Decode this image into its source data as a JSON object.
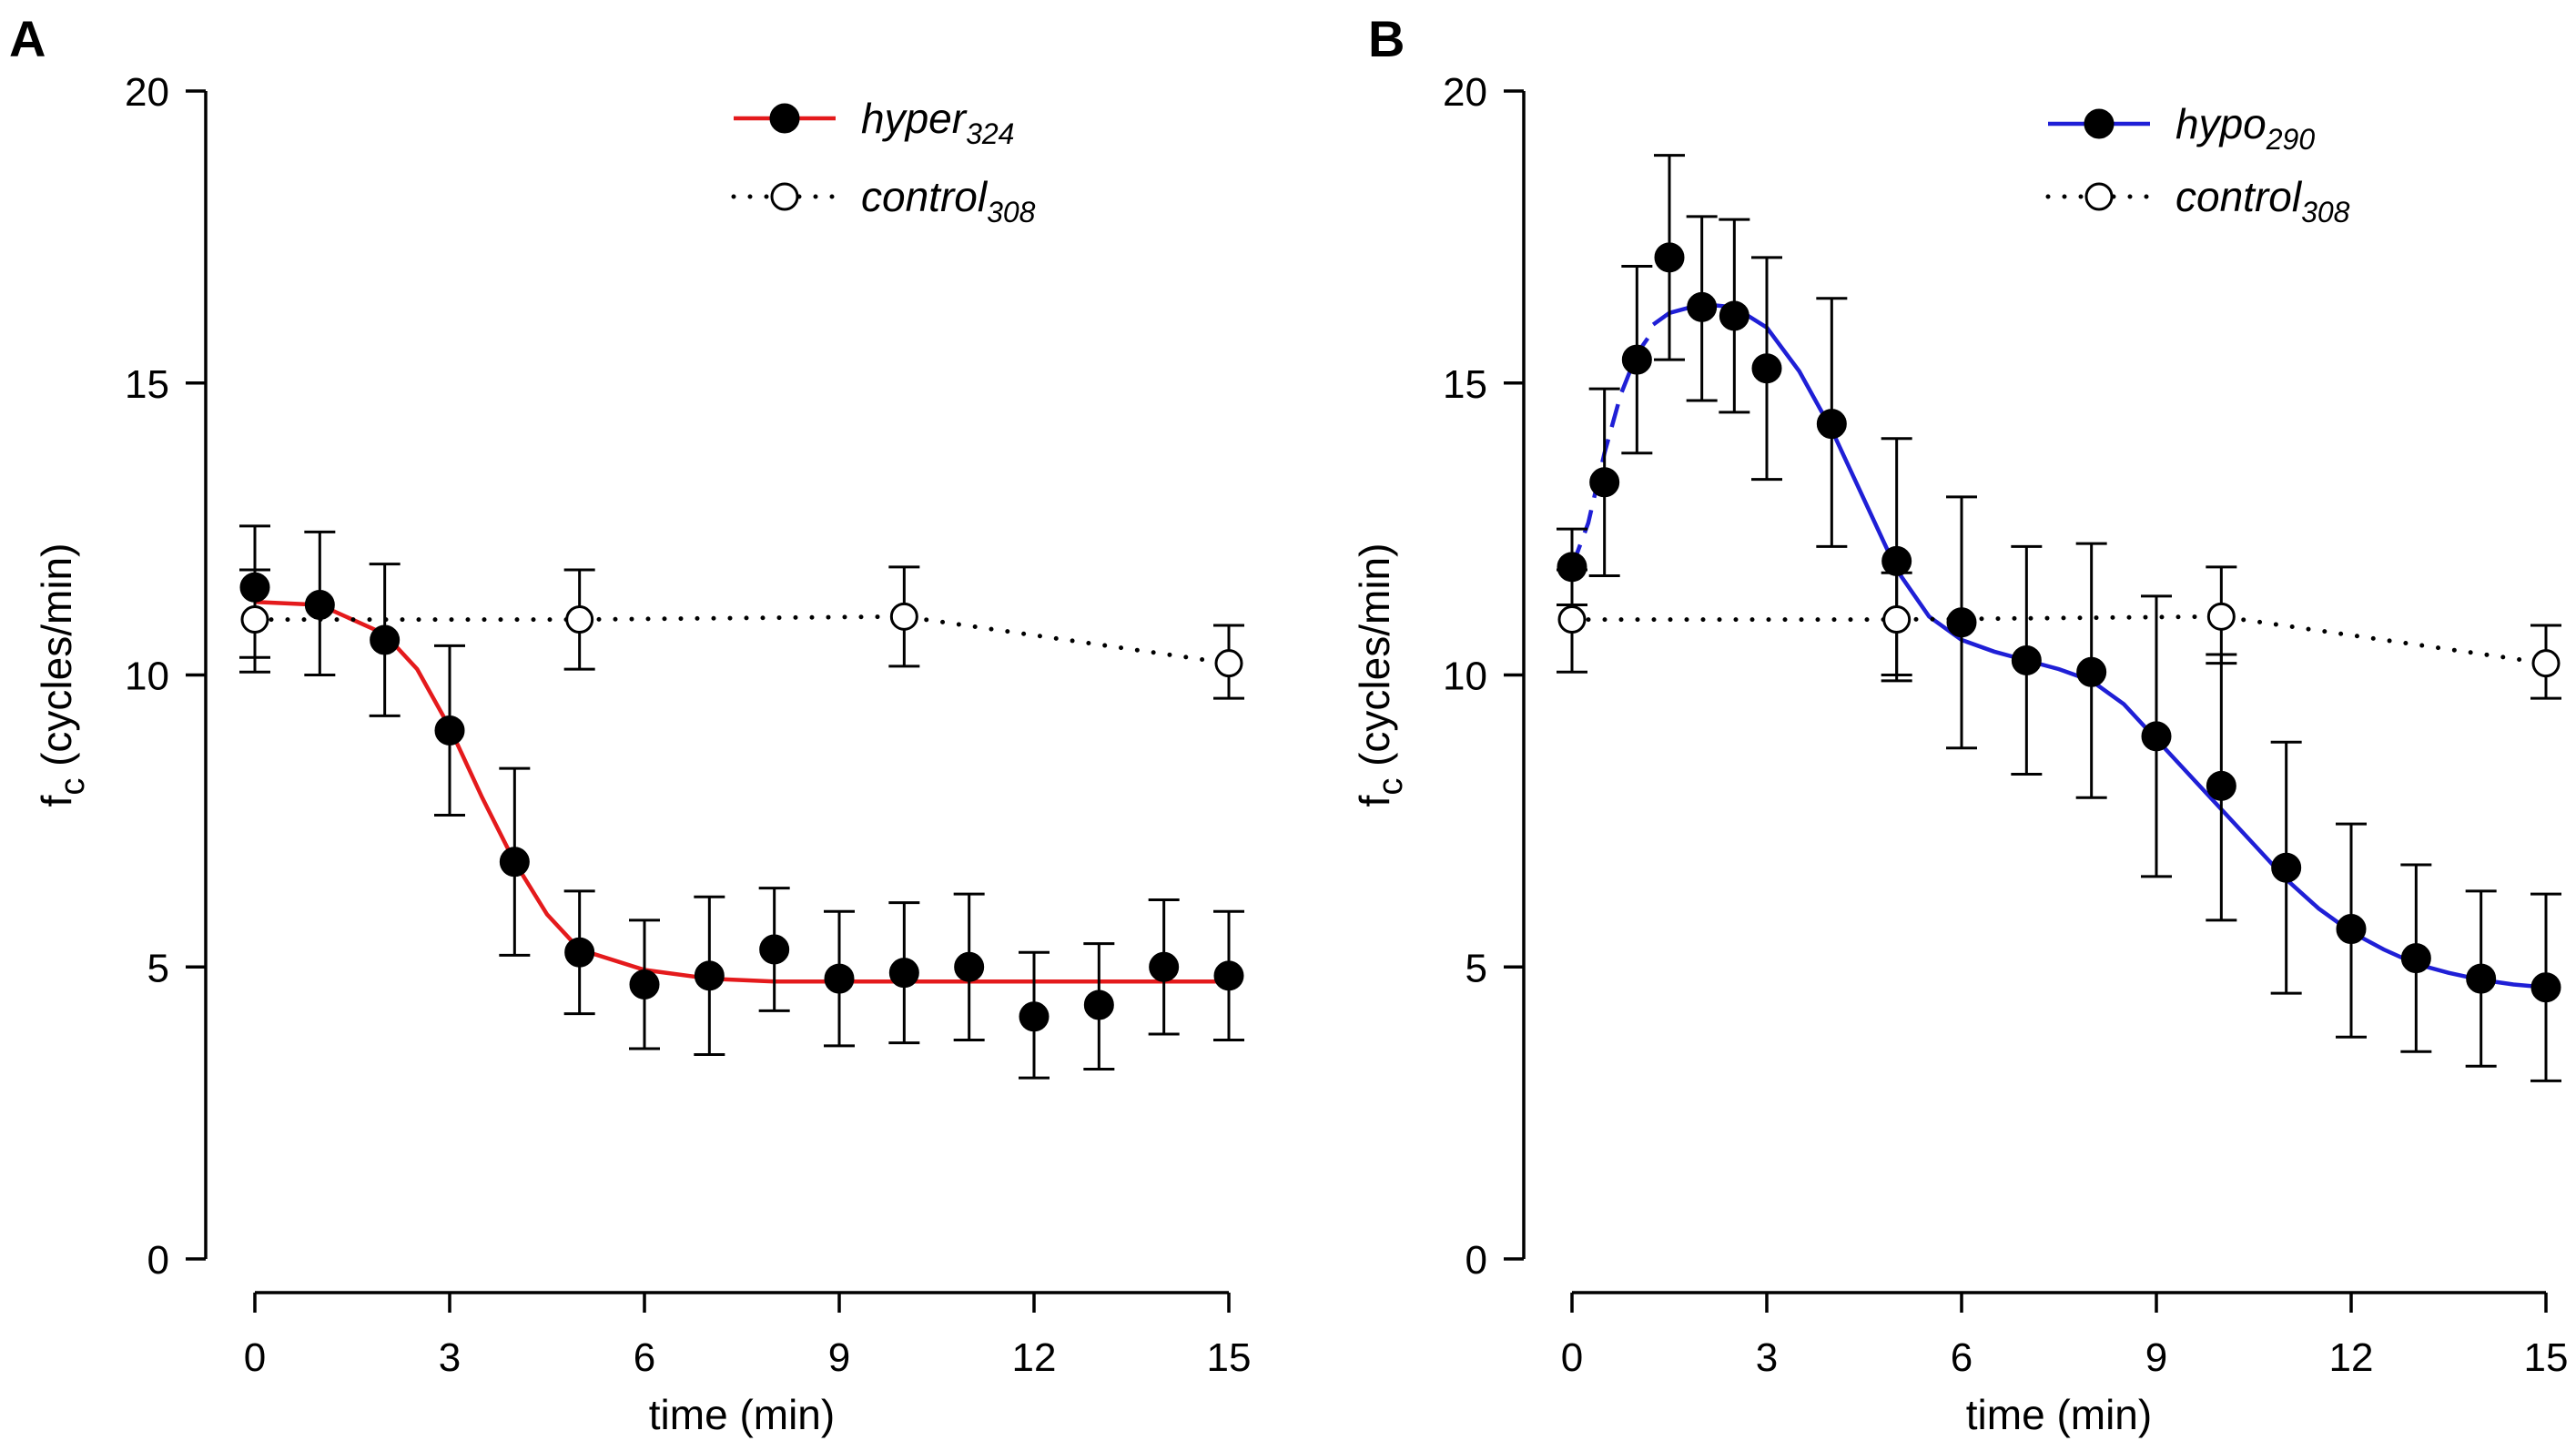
{
  "chart_data": [
    {
      "panel": "A",
      "type": "line",
      "xlabel": "time (min)",
      "ylabel_main": "f",
      "ylabel_sub": "c",
      "ylabel_units": " (cycles/min)",
      "xlim": [
        0,
        15
      ],
      "ylim": [
        0,
        20
      ],
      "xticks": [
        "0",
        "3",
        "6",
        "9",
        "12",
        "15"
      ],
      "yticks": [
        "0",
        "5",
        "10",
        "15",
        "20"
      ],
      "legend": [
        {
          "name": "hyper",
          "sub": "324",
          "style": "solid",
          "color": "#e41a1c",
          "marker": "filled"
        },
        {
          "name": "control",
          "sub": "308",
          "style": "dotted",
          "color": "#000000",
          "marker": "open"
        }
      ],
      "series": [
        {
          "name": "hyper_324",
          "marker": "filled",
          "x": [
            0,
            1,
            2,
            3,
            4,
            5,
            6,
            7,
            8,
            9,
            10,
            11,
            12,
            13,
            14,
            15
          ],
          "y": [
            11.5,
            11.2,
            10.6,
            9.05,
            6.8,
            5.25,
            4.7,
            4.85,
            5.3,
            4.8,
            4.9,
            5.0,
            4.15,
            4.35,
            5.0,
            4.85
          ],
          "err_low": [
            10.3,
            10.0,
            9.3,
            7.6,
            5.2,
            4.2,
            3.6,
            3.5,
            4.25,
            3.65,
            3.7,
            3.75,
            3.1,
            3.25,
            3.85,
            3.75
          ],
          "err_high": [
            12.55,
            12.45,
            11.9,
            10.5,
            8.4,
            6.3,
            5.8,
            6.2,
            6.35,
            5.95,
            6.1,
            6.25,
            5.25,
            5.4,
            6.15,
            5.95
          ]
        },
        {
          "name": "control_308",
          "marker": "open",
          "x": [
            0,
            5,
            10,
            15
          ],
          "y": [
            10.95,
            10.95,
            11.0,
            10.2
          ],
          "err_low": [
            10.05,
            10.1,
            10.15,
            9.6
          ],
          "err_high": [
            11.8,
            11.8,
            11.85,
            10.85
          ]
        }
      ],
      "fit": {
        "name": "hyper_324 fit",
        "color": "#e41a1c",
        "x": [
          0,
          1,
          2,
          2.5,
          3,
          3.5,
          4,
          4.5,
          5,
          6,
          7,
          8,
          10,
          12,
          15
        ],
        "y": [
          11.25,
          11.2,
          10.7,
          10.1,
          9.1,
          7.9,
          6.8,
          5.9,
          5.3,
          4.95,
          4.8,
          4.75,
          4.75,
          4.75,
          4.75
        ]
      }
    },
    {
      "panel": "B",
      "type": "line",
      "xlabel": "time (min)",
      "ylabel_main": "f",
      "ylabel_sub": "c",
      "ylabel_units": " (cycles/min)",
      "xlim": [
        0,
        15
      ],
      "ylim": [
        0,
        20
      ],
      "xticks": [
        "0",
        "3",
        "6",
        "9",
        "12",
        "15"
      ],
      "yticks": [
        "0",
        "5",
        "10",
        "15",
        "20"
      ],
      "legend": [
        {
          "name": "hypo",
          "sub": "290",
          "style": "solid",
          "color": "#1f1fd6",
          "marker": "filled"
        },
        {
          "name": "control",
          "sub": "308",
          "style": "dotted",
          "color": "#000000",
          "marker": "open"
        }
      ],
      "series": [
        {
          "name": "hypo_290",
          "marker": "filled",
          "x": [
            0,
            0.5,
            1,
            1.5,
            2,
            2.5,
            3,
            4,
            5,
            6,
            7,
            8,
            9,
            10,
            11,
            12,
            13,
            14,
            15
          ],
          "y": [
            11.85,
            13.3,
            15.4,
            17.15,
            16.3,
            16.15,
            15.25,
            14.3,
            11.95,
            10.9,
            10.25,
            10.05,
            8.95,
            8.1,
            6.7,
            5.65,
            5.15,
            4.8,
            4.65
          ],
          "err_low": [
            11.2,
            11.7,
            13.8,
            15.4,
            14.7,
            14.5,
            13.35,
            12.2,
            9.9,
            8.75,
            8.3,
            7.9,
            6.55,
            5.8,
            4.55,
            3.8,
            3.55,
            3.3,
            3.05
          ],
          "err_high": [
            12.5,
            14.9,
            17.0,
            18.9,
            17.85,
            17.8,
            17.15,
            16.45,
            14.05,
            13.05,
            12.2,
            12.25,
            11.35,
            10.35,
            8.85,
            7.45,
            6.75,
            6.3,
            6.25
          ]
        },
        {
          "name": "control_308",
          "marker": "open",
          "x": [
            0,
            5,
            10,
            15
          ],
          "y": [
            10.95,
            10.95,
            11.0,
            10.2
          ],
          "err_low": [
            10.05,
            10.0,
            10.2,
            9.6
          ],
          "err_high": [
            11.8,
            11.75,
            11.85,
            10.85
          ]
        }
      ],
      "fit_dashed": {
        "name": "hypo_290 early fit",
        "color": "#1f1fd6",
        "x": [
          0,
          0.25,
          0.5,
          0.75,
          1.0,
          1.25
        ],
        "y": [
          11.85,
          12.6,
          13.8,
          14.8,
          15.5,
          15.9
        ]
      },
      "fit": {
        "name": "hypo_290 fit",
        "color": "#1f1fd6",
        "x": [
          1.25,
          1.5,
          2,
          2.5,
          3,
          3.5,
          4,
          4.5,
          5,
          5.5,
          6,
          6.5,
          7,
          7.5,
          8,
          8.5,
          9,
          9.5,
          10,
          10.5,
          11,
          11.5,
          12,
          12.5,
          13,
          13.5,
          14,
          14.5,
          15
        ],
        "y": [
          16.0,
          16.2,
          16.35,
          16.3,
          15.95,
          15.2,
          14.2,
          13.0,
          11.8,
          11.0,
          10.6,
          10.4,
          10.25,
          10.1,
          9.9,
          9.5,
          8.9,
          8.3,
          7.7,
          7.1,
          6.5,
          6.0,
          5.6,
          5.3,
          5.05,
          4.9,
          4.78,
          4.7,
          4.65
        ]
      }
    }
  ]
}
